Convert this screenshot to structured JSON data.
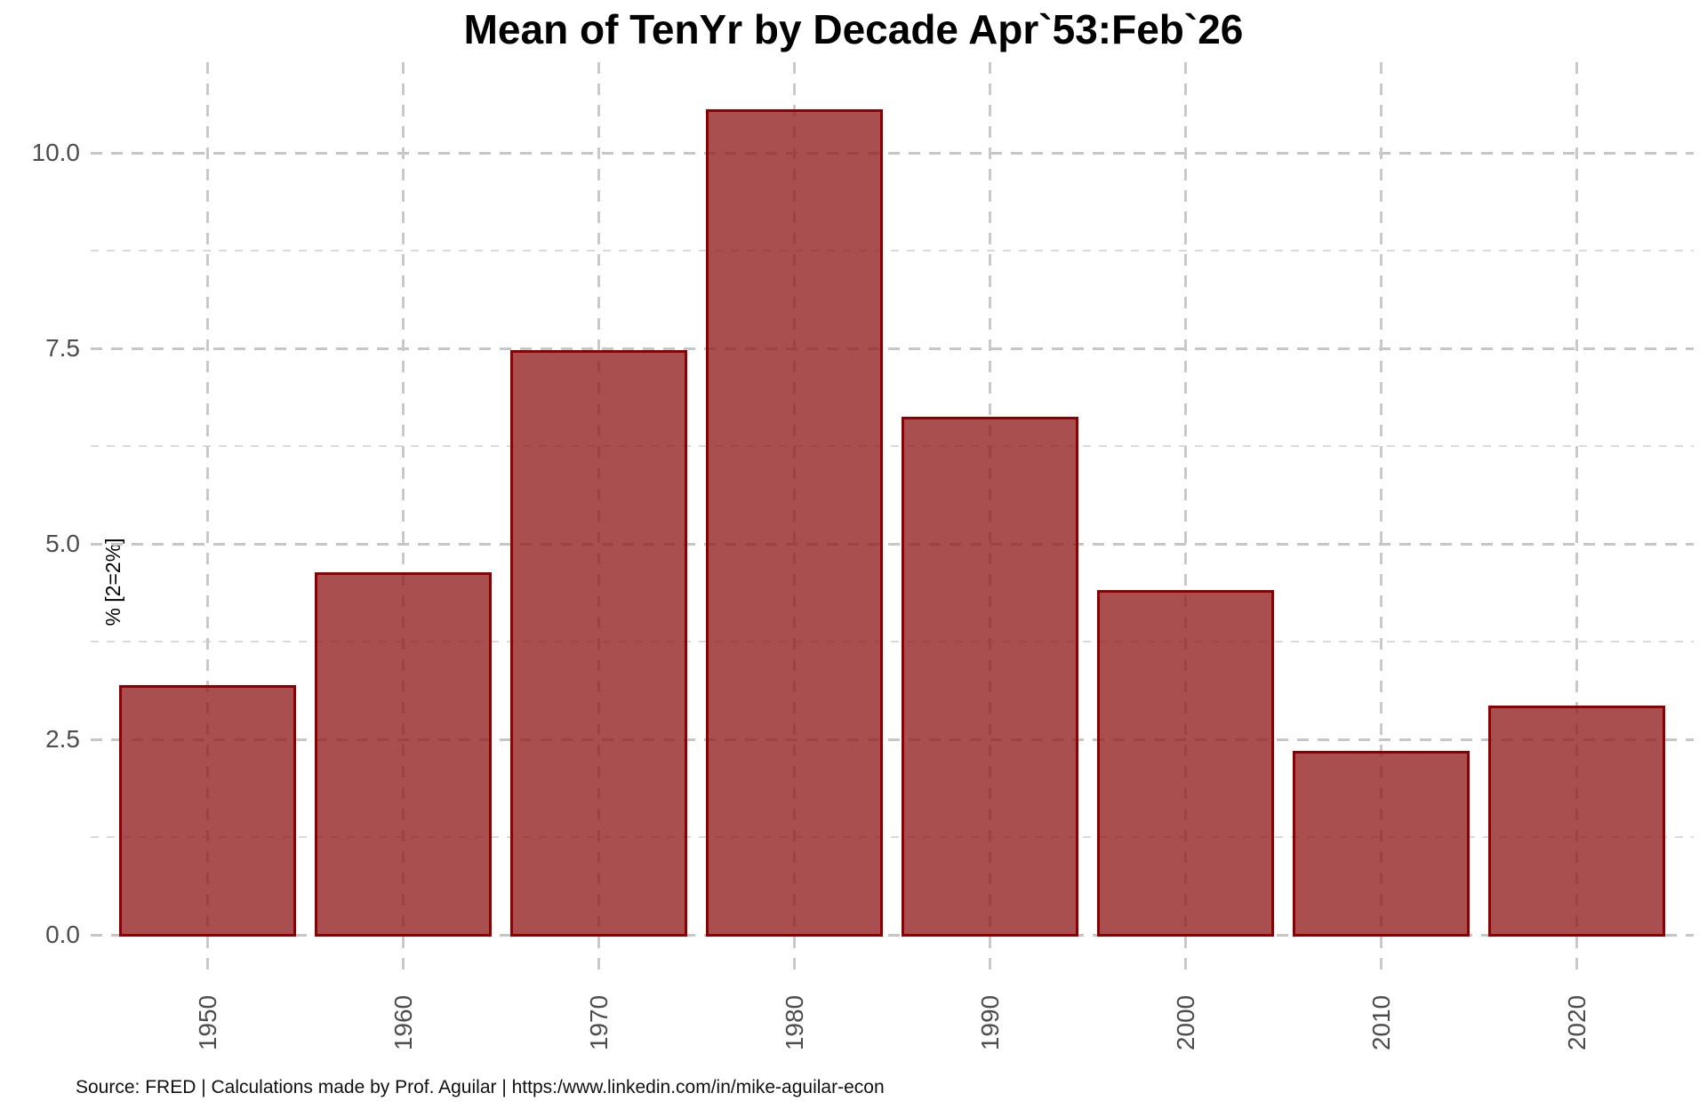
{
  "title": "Mean of TenYr by Decade Apr`53:Feb`26",
  "y_axis_title": "% [2=2%]",
  "caption": "Source: FRED | Calculations made by Prof. Aguilar | https:/www.linkedin.com/in/mike-aguilar-econ",
  "chart_data": {
    "type": "bar",
    "title": "Mean of TenYr by Decade Apr`53:Feb`26",
    "categories": [
      "1950",
      "1960",
      "1970",
      "1980",
      "1990",
      "2000",
      "2010",
      "2020"
    ],
    "values": [
      3.22,
      4.66,
      7.5,
      10.58,
      6.65,
      4.43,
      2.38,
      2.95
    ],
    "xlabel": "",
    "ylabel": "% [2=2%]",
    "ylim": [
      0,
      11.16
    ],
    "y_major_ticks": [
      0.0,
      2.5,
      5.0,
      7.5,
      10.0
    ],
    "y_tick_labels": [
      "0.0",
      "2.5",
      "5.0",
      "7.5",
      "10.0"
    ],
    "y_minor_ticks": [
      1.25,
      3.75,
      6.25,
      8.75
    ],
    "grid": "dashed light-gray; horizontal major+minor, vertical major at bar centers; grid visible through translucent bars",
    "legend": "none",
    "x_tick_rotation": -90,
    "bar_fill": "#A74E4E",
    "bar_border": "#8B0000",
    "gridline_color": "#C9C9C9",
    "tick_label_color": "#4D4D4D",
    "background": "#FFFFFF"
  }
}
